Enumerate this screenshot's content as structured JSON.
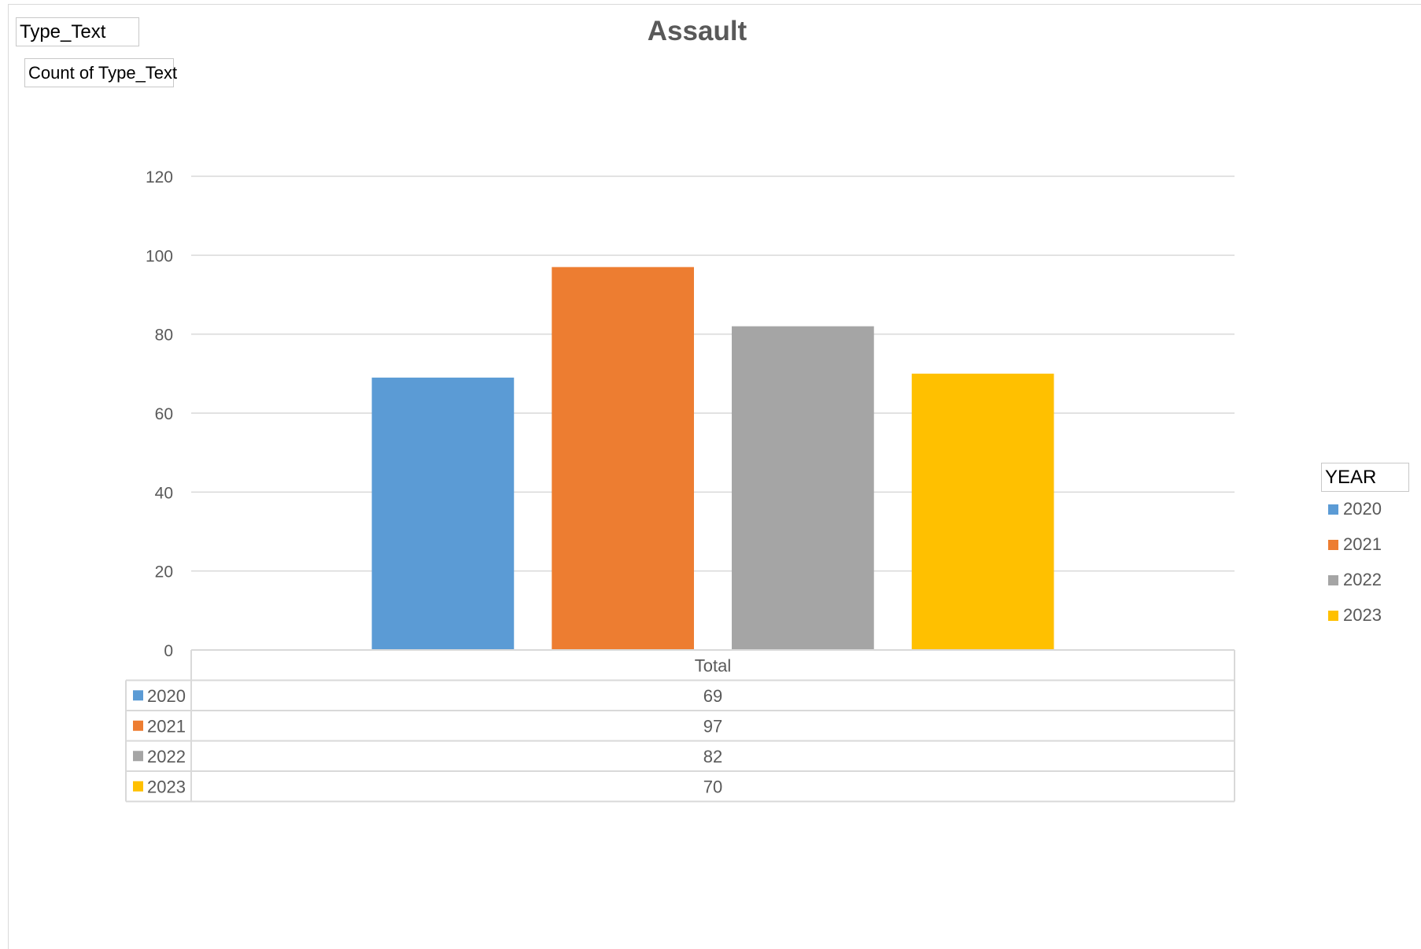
{
  "filter_field": "Type_Text",
  "values_field": "Count of Type_Text",
  "legend_field": "YEAR",
  "chart_data": {
    "type": "bar",
    "title": "Assault",
    "categories": [
      "Total"
    ],
    "series": [
      {
        "name": "2020",
        "values": [
          69
        ],
        "color": "#5B9BD5"
      },
      {
        "name": "2021",
        "values": [
          97
        ],
        "color": "#ED7D31"
      },
      {
        "name": "2022",
        "values": [
          82
        ],
        "color": "#A5A5A5"
      },
      {
        "name": "2023",
        "values": [
          70
        ],
        "color": "#FFC000"
      }
    ],
    "ylim": [
      0,
      120
    ],
    "yticks": [
      0,
      20,
      40,
      60,
      80,
      100,
      120
    ],
    "grid": true,
    "legend_position": "right",
    "data_table": true
  }
}
